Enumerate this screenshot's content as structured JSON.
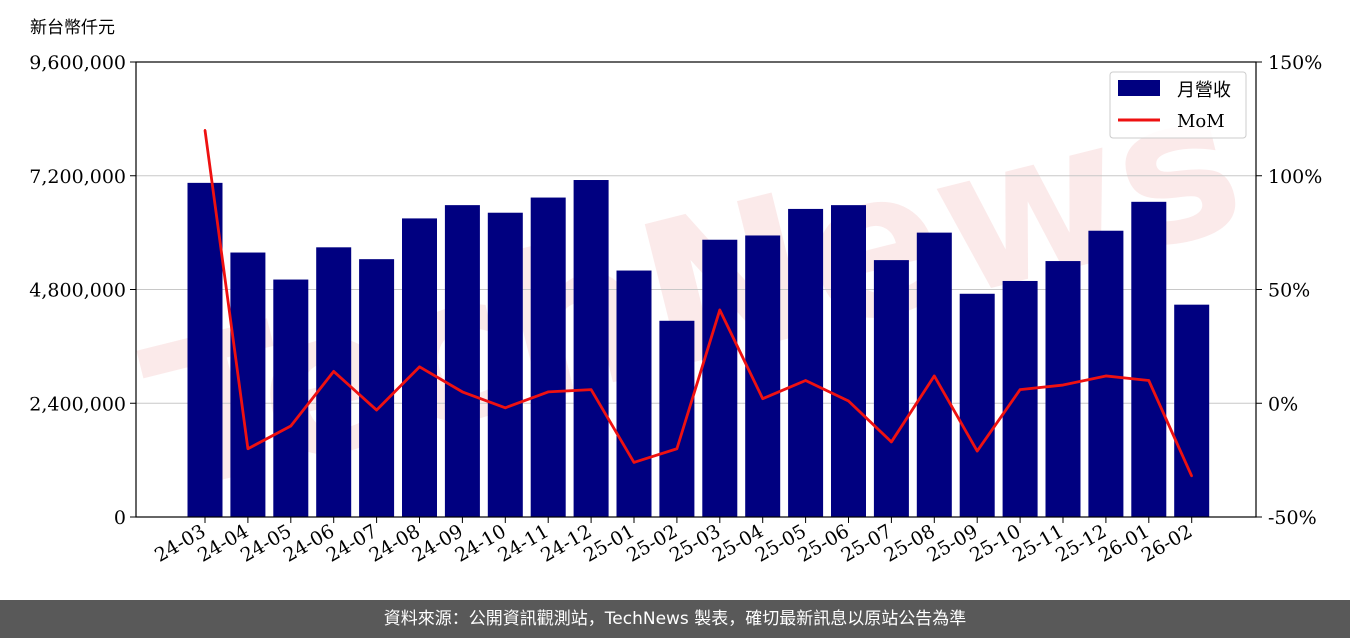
{
  "chart_data": {
    "type": "bar",
    "ylabel": "新台幣仟元",
    "categories": [
      "24-03",
      "24-04",
      "24-05",
      "24-06",
      "24-07",
      "24-08",
      "24-09",
      "24-10",
      "24-11",
      "24-12",
      "25-01",
      "25-02",
      "25-03",
      "25-04",
      "25-05",
      "25-06",
      "25-07",
      "25-08",
      "25-09",
      "25-10",
      "25-11",
      "25-12",
      "26-01",
      "26-02"
    ],
    "ylim": [
      0,
      9600000
    ],
    "yticks": [
      "0",
      "2,400,000",
      "4,800,000",
      "7,200,000",
      "9,600,000"
    ],
    "ytick_values": [
      0,
      2400000,
      4800000,
      7200000,
      9600000
    ],
    "y2lim": [
      -50,
      150
    ],
    "y2ticks": [
      "-50%",
      "0%",
      "50%",
      "100%",
      "150%"
    ],
    "y2tick_values": [
      -50,
      0,
      50,
      100,
      150
    ],
    "series": [
      {
        "name": "月營收",
        "type": "bar",
        "color": "#000080",
        "values": [
          7050000,
          5580000,
          5010000,
          5690000,
          5440000,
          6300000,
          6580000,
          6420000,
          6740000,
          7110000,
          5200000,
          4140000,
          5850000,
          5940000,
          6500000,
          6580000,
          5420000,
          6000000,
          4710000,
          4980000,
          5400000,
          6040000,
          6650000,
          4480000
        ]
      },
      {
        "name": "MoM",
        "type": "line",
        "color": "#ee1111",
        "axis": "right",
        "values": [
          120,
          -20,
          -10,
          14,
          -3,
          16,
          5,
          -2,
          5,
          6,
          -26,
          -20,
          41,
          2,
          10,
          1,
          -17,
          12,
          -21,
          6,
          8,
          12,
          10,
          -32
        ]
      }
    ],
    "legend": {
      "placement": "top-right"
    },
    "grid": true,
    "watermark": "TechNews"
  },
  "footer": {
    "text": "資料來源：公開資訊觀測站，TechNews 製表，確切最新訊息以原站公告為準"
  }
}
